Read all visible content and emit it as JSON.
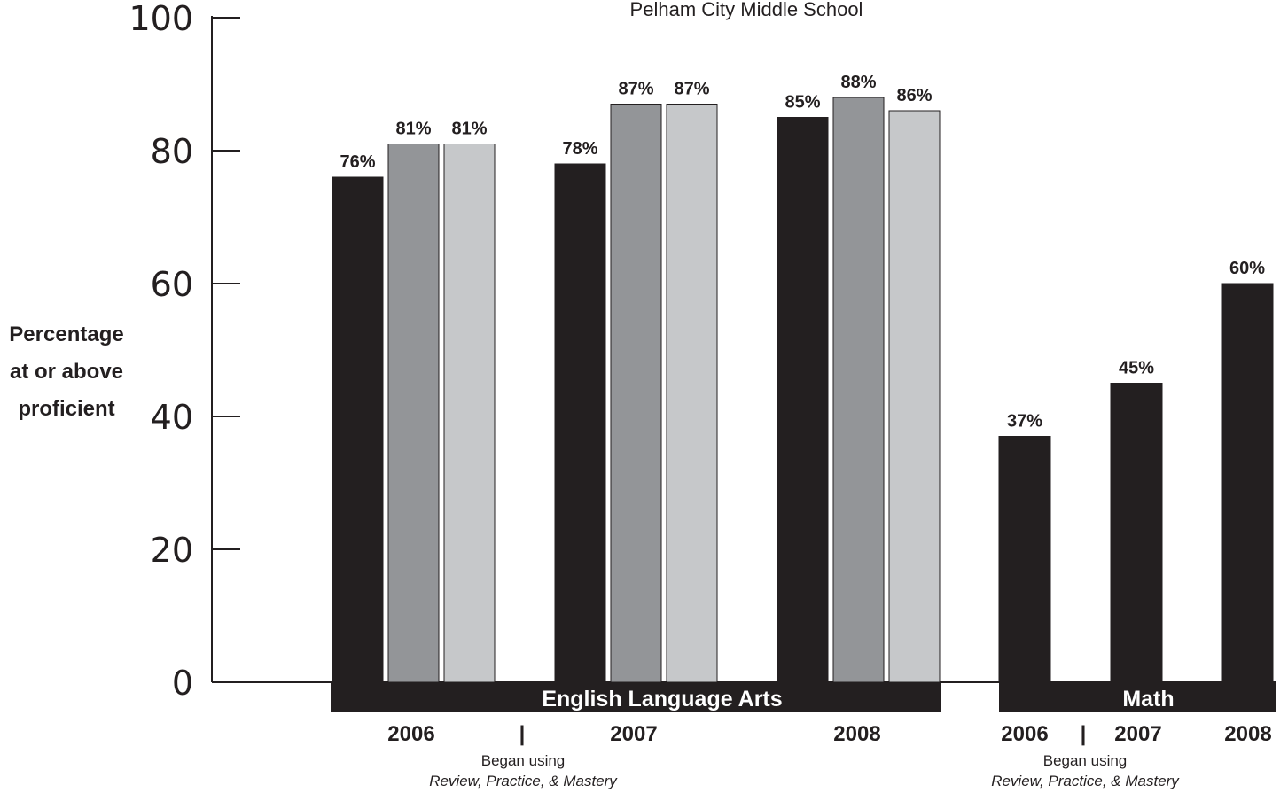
{
  "chart_data": {
    "type": "bar",
    "title": "Pelham City Middle School",
    "ylabel": [
      "Percentage",
      "at or above",
      "proficient"
    ],
    "ylim": [
      0,
      100
    ],
    "yticks": [
      0,
      20,
      40,
      60,
      80,
      100
    ],
    "groups": [
      {
        "subject": "English Language Arts",
        "years": [
          {
            "year": "2006",
            "values": [
              76,
              81,
              81
            ],
            "labels": [
              "76%",
              "81%",
              "81%"
            ]
          },
          {
            "year": "2007",
            "values": [
              78,
              87,
              87
            ],
            "labels": [
              "78%",
              "87%",
              "87%"
            ]
          },
          {
            "year": "2008",
            "values": [
              85,
              88,
              86
            ],
            "labels": [
              "85%",
              "88%",
              "86%"
            ]
          }
        ]
      },
      {
        "subject": "Math",
        "years": [
          {
            "year": "2006",
            "values": [
              37
            ],
            "labels": [
              "37%"
            ]
          },
          {
            "year": "2007",
            "values": [
              45
            ],
            "labels": [
              "45%"
            ]
          },
          {
            "year": "2008",
            "values": [
              60
            ],
            "labels": [
              "60%"
            ]
          }
        ]
      }
    ],
    "series_colors": [
      "#231f20",
      "#939598",
      "#c6c8ca"
    ],
    "divider_mark": "|",
    "annotation": {
      "line1": "Began using",
      "line2": "Review, Practice, & Mastery"
    }
  }
}
